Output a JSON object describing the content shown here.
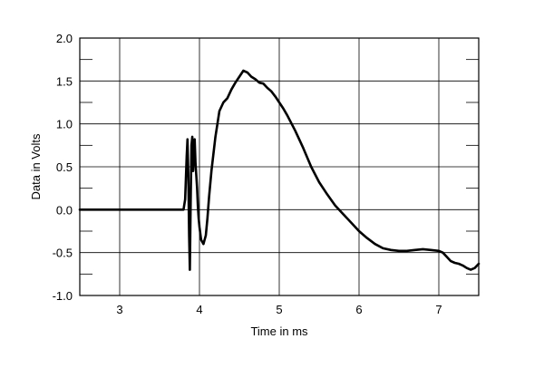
{
  "chart_data": {
    "type": "line",
    "xlabel": "Time in ms",
    "ylabel": "Data in Volts",
    "xlim": [
      2.5,
      7.5
    ],
    "ylim": [
      -1.0,
      2.0
    ],
    "x_ticks": [
      3,
      4,
      5,
      6,
      7
    ],
    "x_tick_labels": [
      "3",
      "4",
      "5",
      "6",
      "7"
    ],
    "y_ticks": [
      -1.0,
      -0.5,
      0.0,
      0.5,
      1.0,
      1.5,
      2.0
    ],
    "y_tick_labels": [
      "-1.0",
      "-0.5",
      "0.0",
      "0.5",
      "1.0",
      "1.5",
      "2.0"
    ],
    "y_minor_ticks": [
      -0.75,
      -0.25,
      0.25,
      0.75,
      1.25,
      1.75
    ],
    "grid": true,
    "line_color": "#000000",
    "series": [
      {
        "x": [
          2.5,
          3.0,
          3.5,
          3.8,
          3.82,
          3.84,
          3.85,
          3.86,
          3.87,
          3.88,
          3.89,
          3.9,
          3.91,
          3.92,
          3.93,
          3.94,
          3.95,
          3.96,
          3.97,
          3.98,
          3.99,
          4.0,
          4.02,
          4.05,
          4.08,
          4.1,
          4.12,
          4.15,
          4.2,
          4.25,
          4.3,
          4.35,
          4.4,
          4.45,
          4.5,
          4.55,
          4.6,
          4.65,
          4.7,
          4.75,
          4.8,
          4.85,
          4.9,
          4.95,
          5.0,
          5.05,
          5.1,
          5.2,
          5.3,
          5.4,
          5.5,
          5.6,
          5.7,
          5.8,
          5.9,
          6.0,
          6.1,
          6.2,
          6.3,
          6.4,
          6.5,
          6.6,
          6.7,
          6.8,
          6.9,
          7.0,
          7.05,
          7.1,
          7.15,
          7.2,
          7.25,
          7.3,
          7.35,
          7.4,
          7.45,
          7.5
        ],
        "y": [
          0.0,
          0.0,
          0.0,
          0.0,
          0.12,
          0.62,
          0.82,
          0.4,
          -0.3,
          -0.7,
          0.1,
          0.75,
          0.85,
          0.45,
          0.72,
          0.82,
          0.55,
          0.4,
          0.25,
          0.05,
          -0.1,
          -0.2,
          -0.35,
          -0.4,
          -0.3,
          -0.1,
          0.15,
          0.45,
          0.85,
          1.15,
          1.25,
          1.3,
          1.4,
          1.48,
          1.55,
          1.62,
          1.6,
          1.55,
          1.52,
          1.48,
          1.47,
          1.42,
          1.38,
          1.32,
          1.25,
          1.18,
          1.1,
          0.92,
          0.72,
          0.5,
          0.32,
          0.18,
          0.05,
          -0.05,
          -0.15,
          -0.25,
          -0.33,
          -0.4,
          -0.45,
          -0.47,
          -0.48,
          -0.48,
          -0.47,
          -0.46,
          -0.47,
          -0.48,
          -0.5,
          -0.55,
          -0.6,
          -0.62,
          -0.63,
          -0.65,
          -0.68,
          -0.7,
          -0.68,
          -0.63
        ]
      }
    ]
  }
}
